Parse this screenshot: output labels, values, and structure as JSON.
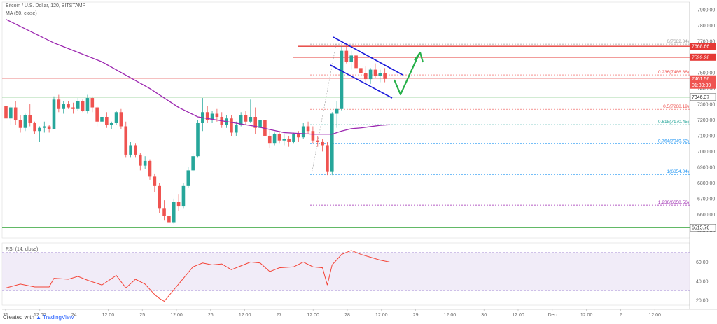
{
  "legend": {
    "title": "Bitcoin / U.S. Dollar, 120, BITSTAMP",
    "ma": "MA (50, close)",
    "rsi": "RSI (14, close)"
  },
  "footer": {
    "created": "Created with",
    "brand": "TradingView"
  },
  "colors": {
    "up": "#26a69a",
    "down": "#ef5350",
    "ma": "#9c27b0",
    "rsi": "#f44336",
    "support": "#4caf50",
    "resistance": "#e53935",
    "channel": "#1a1adb",
    "arrow": "#27b04a",
    "fib_top": "#9e9e9e",
    "fib_mid": "#ef5350",
    "fib_green": "#26a69a",
    "fib_blue": "#2196f3",
    "fib_purple": "#9c27b0"
  },
  "chart_data": {
    "type": "candlestick",
    "ylim": [
      6450,
      7950
    ],
    "price_ticks": [
      "7900.00",
      "7800.00",
      "7700.00",
      "7600.00",
      "7500.00",
      "7400.00",
      "7300.00",
      "7200.00",
      "7100.00",
      "7000.00",
      "6900.00",
      "6800.00",
      "6700.00",
      "6600.00",
      "6500.00"
    ],
    "x_ticks": [
      "21",
      "12:00",
      "24",
      "12:00",
      "25",
      "12:00",
      "26",
      "12:00",
      "27",
      "12:00",
      "28",
      "12:00",
      "29",
      "12:00",
      "30",
      "12:00",
      "Dec",
      "12:00",
      "2",
      "12:00"
    ],
    "candles": [
      [
        7290,
        7320,
        7190,
        7210
      ],
      [
        7210,
        7290,
        7170,
        7280
      ],
      [
        7280,
        7320,
        7170,
        7200
      ],
      [
        7200,
        7230,
        7120,
        7150
      ],
      [
        7150,
        7240,
        7130,
        7230
      ],
      [
        7230,
        7300,
        7160,
        7180
      ],
      [
        7180,
        7190,
        7110,
        7130
      ],
      [
        7130,
        7160,
        7060,
        7150
      ],
      [
        7150,
        7190,
        7120,
        7160
      ],
      [
        7160,
        7170,
        7120,
        7140
      ],
      [
        7140,
        7350,
        7140,
        7330
      ],
      [
        7330,
        7360,
        7250,
        7270
      ],
      [
        7270,
        7320,
        7240,
        7300
      ],
      [
        7300,
        7320,
        7270,
        7280
      ],
      [
        7280,
        7310,
        7240,
        7270
      ],
      [
        7270,
        7340,
        7260,
        7320
      ],
      [
        7320,
        7330,
        7250,
        7260
      ],
      [
        7260,
        7360,
        7240,
        7340
      ],
      [
        7340,
        7350,
        7250,
        7280
      ],
      [
        7280,
        7290,
        7160,
        7190
      ],
      [
        7190,
        7230,
        7150,
        7220
      ],
      [
        7220,
        7250,
        7150,
        7170
      ],
      [
        7170,
        7190,
        7140,
        7180
      ],
      [
        7180,
        7260,
        7170,
        7250
      ],
      [
        7250,
        7270,
        7140,
        7160
      ],
      [
        7160,
        7190,
        6960,
        6980
      ],
      [
        6980,
        7060,
        6960,
        7040
      ],
      [
        7040,
        7050,
        6960,
        6980
      ],
      [
        6980,
        6990,
        6880,
        6910
      ],
      [
        6910,
        6970,
        6890,
        6940
      ],
      [
        6940,
        6950,
        6820,
        6840
      ],
      [
        6840,
        6860,
        6740,
        6780
      ],
      [
        6780,
        6800,
        6610,
        6640
      ],
      [
        6640,
        6690,
        6560,
        6590
      ],
      [
        6590,
        6620,
        6530,
        6550
      ],
      [
        6550,
        6700,
        6540,
        6680
      ],
      [
        6680,
        6730,
        6620,
        6650
      ],
      [
        6650,
        6800,
        6640,
        6780
      ],
      [
        6780,
        6900,
        6770,
        6880
      ],
      [
        6880,
        6990,
        6870,
        6970
      ],
      [
        6970,
        7200,
        6960,
        7180
      ],
      [
        7180,
        7340,
        7130,
        7250
      ],
      [
        7250,
        7290,
        7180,
        7200
      ],
      [
        7200,
        7260,
        7180,
        7240
      ],
      [
        7240,
        7270,
        7190,
        7220
      ],
      [
        7220,
        7250,
        7150,
        7170
      ],
      [
        7170,
        7230,
        7150,
        7210
      ],
      [
        7210,
        7230,
        7100,
        7120
      ],
      [
        7120,
        7190,
        7100,
        7170
      ],
      [
        7170,
        7250,
        7160,
        7230
      ],
      [
        7230,
        7260,
        7170,
        7190
      ],
      [
        7190,
        7330,
        7180,
        7220
      ],
      [
        7220,
        7280,
        7110,
        7150
      ],
      [
        7150,
        7220,
        7100,
        7200
      ],
      [
        7200,
        7220,
        7090,
        7100
      ],
      [
        7100,
        7140,
        7020,
        7050
      ],
      [
        7050,
        7120,
        7040,
        7110
      ],
      [
        7110,
        7130,
        7050,
        7070
      ],
      [
        7070,
        7110,
        7040,
        7080
      ],
      [
        7080,
        7100,
        7030,
        7060
      ],
      [
        7060,
        7120,
        7050,
        7110
      ],
      [
        7110,
        7130,
        7060,
        7090
      ],
      [
        7090,
        7180,
        7080,
        7160
      ],
      [
        7160,
        7190,
        7110,
        7130
      ],
      [
        7130,
        7160,
        7050,
        7070
      ],
      [
        7070,
        7100,
        7030,
        7060
      ],
      [
        7060,
        7080,
        7000,
        7040
      ],
      [
        7040,
        7060,
        6850,
        6870
      ],
      [
        6870,
        7250,
        6850,
        7240
      ],
      [
        7240,
        7320,
        7150,
        7270
      ],
      [
        7270,
        7670,
        7260,
        7640
      ],
      [
        7640,
        7682,
        7560,
        7570
      ],
      [
        7570,
        7640,
        7520,
        7610
      ],
      [
        7610,
        7630,
        7510,
        7530
      ],
      [
        7530,
        7560,
        7460,
        7500
      ],
      [
        7500,
        7540,
        7440,
        7460
      ],
      [
        7460,
        7530,
        7430,
        7520
      ],
      [
        7520,
        7560,
        7470,
        7480
      ],
      [
        7480,
        7520,
        7440,
        7500
      ],
      [
        7500,
        7530,
        7440,
        7462
      ]
    ],
    "ma_50": [
      [
        0,
        7840
      ],
      [
        10,
        7690
      ],
      [
        20,
        7570
      ],
      [
        30,
        7400
      ],
      [
        36,
        7280
      ],
      [
        40,
        7220
      ],
      [
        46,
        7190
      ],
      [
        52,
        7160
      ],
      [
        58,
        7120
      ],
      [
        64,
        7110
      ],
      [
        68,
        7110
      ],
      [
        70,
        7130
      ],
      [
        72,
        7145
      ],
      [
        74,
        7150
      ],
      [
        76,
        7158
      ],
      [
        78,
        7166
      ],
      [
        80,
        7170
      ]
    ],
    "rsi": {
      "ylim": [
        15,
        80
      ],
      "ticks": [
        "60.00",
        "40.00",
        "20.00"
      ],
      "band": [
        30,
        70
      ],
      "values": [
        [
          0,
          33
        ],
        [
          3,
          37
        ],
        [
          6,
          34
        ],
        [
          9,
          34
        ],
        [
          10,
          43
        ],
        [
          13,
          42
        ],
        [
          15,
          45
        ],
        [
          17,
          41
        ],
        [
          20,
          36
        ],
        [
          23,
          46
        ],
        [
          25,
          33
        ],
        [
          27,
          42
        ],
        [
          29,
          37
        ],
        [
          31,
          26
        ],
        [
          32,
          22
        ],
        [
          33,
          19
        ],
        [
          35,
          31
        ],
        [
          37,
          43
        ],
        [
          39,
          55
        ],
        [
          41,
          59
        ],
        [
          43,
          57
        ],
        [
          45,
          58
        ],
        [
          47,
          52
        ],
        [
          49,
          56
        ],
        [
          51,
          60
        ],
        [
          53,
          59
        ],
        [
          55,
          50
        ],
        [
          57,
          54
        ],
        [
          60,
          55
        ],
        [
          62,
          60
        ],
        [
          64,
          55
        ],
        [
          66,
          54
        ],
        [
          67,
          36
        ],
        [
          68,
          57
        ],
        [
          70,
          68
        ],
        [
          72,
          72
        ],
        [
          74,
          68
        ],
        [
          76,
          65
        ],
        [
          78,
          62
        ],
        [
          80,
          60
        ]
      ]
    },
    "levels": {
      "resistance": [
        {
          "value": 7668.66,
          "label": "7668.66"
        },
        {
          "value": 7599.28,
          "label": "7599.28"
        }
      ],
      "current": {
        "value": 7461.56,
        "label": "7461.56",
        "time": "01:39:39"
      },
      "support": [
        {
          "value": 7346.37,
          "label": "7346.37"
        },
        {
          "value": 6515.76,
          "label": "6515.76"
        }
      ]
    },
    "fibonacci": [
      {
        "ratio": "0",
        "value": 7682.34,
        "label": "0(7682.34)",
        "kind": "fib_top"
      },
      {
        "ratio": "0.236",
        "value": 7486.86,
        "label": "0.236(7486.86)",
        "kind": "fib_mid"
      },
      {
        "ratio": "0.5",
        "value": 7268.19,
        "label": "0.5(7268.19)",
        "kind": "fib_mid"
      },
      {
        "ratio": "0.618",
        "value": 7170.45,
        "label": "0.618(7170.45)",
        "kind": "fib_green"
      },
      {
        "ratio": "0.764",
        "value": 7049.52,
        "label": "0.764(7049.52)",
        "kind": "fib_blue"
      },
      {
        "ratio": "1",
        "value": 6854.04,
        "label": "1(6854.04)",
        "kind": "fib_blue"
      },
      {
        "ratio": "1.236",
        "value": 6658.56,
        "label": "1.236(6658.56)",
        "kind": "fib_purple"
      }
    ]
  }
}
